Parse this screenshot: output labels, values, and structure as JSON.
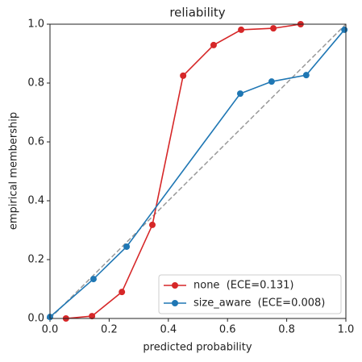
{
  "chart_data": {
    "type": "line",
    "title": "reliability",
    "x_label": "predicted probability",
    "y_label": "empirical membership",
    "xlim": [
      0,
      1
    ],
    "ylim": [
      0,
      1
    ],
    "xticks": [
      {
        "value": 0,
        "label": "0.0"
      },
      {
        "value": 0.2,
        "label": "0.2"
      },
      {
        "value": 0.4,
        "label": "0.4"
      },
      {
        "value": 0.6,
        "label": "0.6"
      },
      {
        "value": 0.8,
        "label": "0.8"
      },
      {
        "value": 1,
        "label": "1.0"
      }
    ],
    "yticks": [
      {
        "value": 0,
        "label": "0.0"
      },
      {
        "value": 0.2,
        "label": "0.2"
      },
      {
        "value": 0.4,
        "label": "0.4"
      },
      {
        "value": 0.6,
        "label": "0.6"
      },
      {
        "value": 0.8,
        "label": "0.8"
      },
      {
        "value": 1,
        "label": "1.0"
      }
    ],
    "reference_line": {
      "x": [
        0,
        1
      ],
      "values": [
        0,
        1
      ],
      "color": "#999999",
      "dashed": true
    },
    "legend_position": "lower right",
    "series": [
      {
        "name": "none  (ECE=0.131)",
        "color": "#d62728",
        "x": [
          0.054,
          0.142,
          0.243,
          0.346,
          0.45,
          0.553,
          0.646,
          0.755,
          0.847
        ],
        "values": [
          0,
          0.008,
          0.09,
          0.318,
          0.825,
          0.929,
          0.981,
          0.986,
          1.0
        ]
      },
      {
        "name": "size_aware  (ECE=0.008)",
        "color": "#1f77b4",
        "x": [
          0,
          0.147,
          0.259,
          0.643,
          0.749,
          0.866,
          0.995
        ],
        "values": [
          0.005,
          0.134,
          0.244,
          0.764,
          0.805,
          0.827,
          0.981
        ]
      }
    ]
  }
}
